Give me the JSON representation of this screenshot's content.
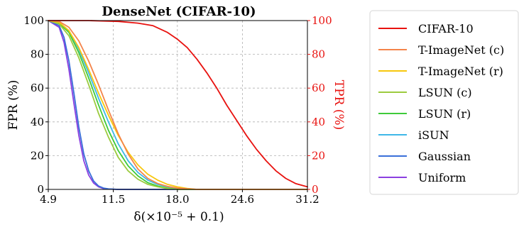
{
  "chart_data": {
    "type": "line",
    "title": "DenseNet (CIFAR-10)",
    "xlabel": "δ(×10⁻⁵ + 0.1)",
    "ylabel_left": "FPR (%)",
    "ylabel_right": "TPR (%)",
    "xlim": [
      4.9,
      31.2
    ],
    "ylim": [
      0,
      100
    ],
    "x_ticks": [
      4.9,
      11.5,
      18.0,
      24.6,
      31.2
    ],
    "x_tick_labels": [
      "4.9",
      "11.5",
      "18.0",
      "24.6",
      "31.2"
    ],
    "y_ticks": [
      0,
      20,
      40,
      60,
      80,
      100
    ],
    "y_tick_labels": [
      "0",
      "20",
      "40",
      "60",
      "80",
      "100"
    ],
    "grid": true,
    "legend_position": "outside-right",
    "series": [
      {
        "name": "CIFAR-10",
        "axis": "right",
        "color": "#e8120f",
        "x": [
          4.9,
          9.0,
          12.0,
          14.0,
          15.5,
          17.0,
          18.0,
          19.0,
          20.0,
          21.0,
          22.0,
          23.0,
          24.0,
          25.0,
          26.0,
          27.0,
          28.0,
          29.0,
          30.0,
          31.2
        ],
        "y": [
          100,
          100,
          99.5,
          98.5,
          97,
          93,
          89,
          84,
          77,
          69,
          60,
          50,
          41,
          32,
          24,
          17,
          11,
          6.5,
          3.5,
          1.5
        ]
      },
      {
        "name": "T-ImageNet (c)",
        "axis": "left",
        "color": "#f4844a",
        "x": [
          4.9,
          6.0,
          7.0,
          8.0,
          9.0,
          10.0,
          11.0,
          12.0,
          13.0,
          14.0,
          15.0,
          16.0,
          17.0,
          18.0,
          19.0,
          20.0
        ],
        "y": [
          100,
          99.5,
          96,
          88,
          76,
          62,
          47,
          33,
          21,
          12,
          6.5,
          3.5,
          1.8,
          0.8,
          0.3,
          0
        ]
      },
      {
        "name": "T-ImageNet (r)",
        "axis": "left",
        "color": "#f7c70d",
        "x": [
          4.9,
          6.0,
          7.0,
          8.0,
          9.0,
          10.0,
          11.0,
          12.0,
          13.0,
          14.0,
          15.0,
          16.0,
          17.0,
          18.0,
          19.0,
          20.0
        ],
        "y": [
          100,
          99,
          94,
          84,
          71,
          57,
          44,
          32,
          22,
          14.5,
          9,
          5.5,
          3,
          1.5,
          0.6,
          0
        ]
      },
      {
        "name": "LSUN (c)",
        "axis": "left",
        "color": "#9ccb3f",
        "x": [
          4.9,
          6.0,
          7.0,
          8.0,
          9.0,
          10.0,
          11.0,
          12.0,
          13.0,
          14.0,
          15.0,
          16.0,
          17.0,
          18.0
        ],
        "y": [
          100,
          98,
          91,
          78,
          62,
          45,
          31,
          19,
          11,
          6,
          3,
          1.5,
          0.5,
          0
        ]
      },
      {
        "name": "LSUN (r)",
        "axis": "left",
        "color": "#3ecb3a",
        "x": [
          4.9,
          6.0,
          7.0,
          8.0,
          9.0,
          10.0,
          11.0,
          12.0,
          13.0,
          14.0,
          15.0,
          16.0,
          17.0,
          18.0
        ],
        "y": [
          100,
          98.5,
          93,
          81,
          66,
          50,
          35,
          23,
          14,
          8,
          4,
          2,
          0.8,
          0
        ]
      },
      {
        "name": "iSUN",
        "axis": "left",
        "color": "#3fb7e8",
        "x": [
          4.9,
          6.0,
          7.0,
          8.0,
          9.0,
          10.0,
          11.0,
          12.0,
          13.0,
          14.0,
          15.0,
          16.0,
          17.0,
          18.0,
          19.0
        ],
        "y": [
          100,
          99,
          94,
          83,
          69,
          54,
          40,
          27,
          17,
          10,
          5.5,
          3,
          1.5,
          0.6,
          0
        ]
      },
      {
        "name": "Gaussian",
        "axis": "left",
        "color": "#3a6fd9",
        "x": [
          4.9,
          6.0,
          6.5,
          7.0,
          7.5,
          8.0,
          8.5,
          9.0,
          9.5,
          10.0,
          10.5,
          11.0,
          12.0
        ],
        "y": [
          100,
          97,
          90,
          76,
          57,
          37,
          21,
          11,
          5,
          2,
          0.8,
          0.3,
          0
        ]
      },
      {
        "name": "Uniform",
        "axis": "left",
        "color": "#8b3fe0",
        "x": [
          4.9,
          6.0,
          6.5,
          7.0,
          7.5,
          8.0,
          8.5,
          9.0,
          9.5,
          10.0,
          10.5,
          11.0,
          12.0
        ],
        "y": [
          100,
          96,
          87,
          71,
          51,
          32,
          17,
          8.5,
          3.8,
          1.5,
          0.5,
          0.2,
          0
        ]
      }
    ]
  }
}
